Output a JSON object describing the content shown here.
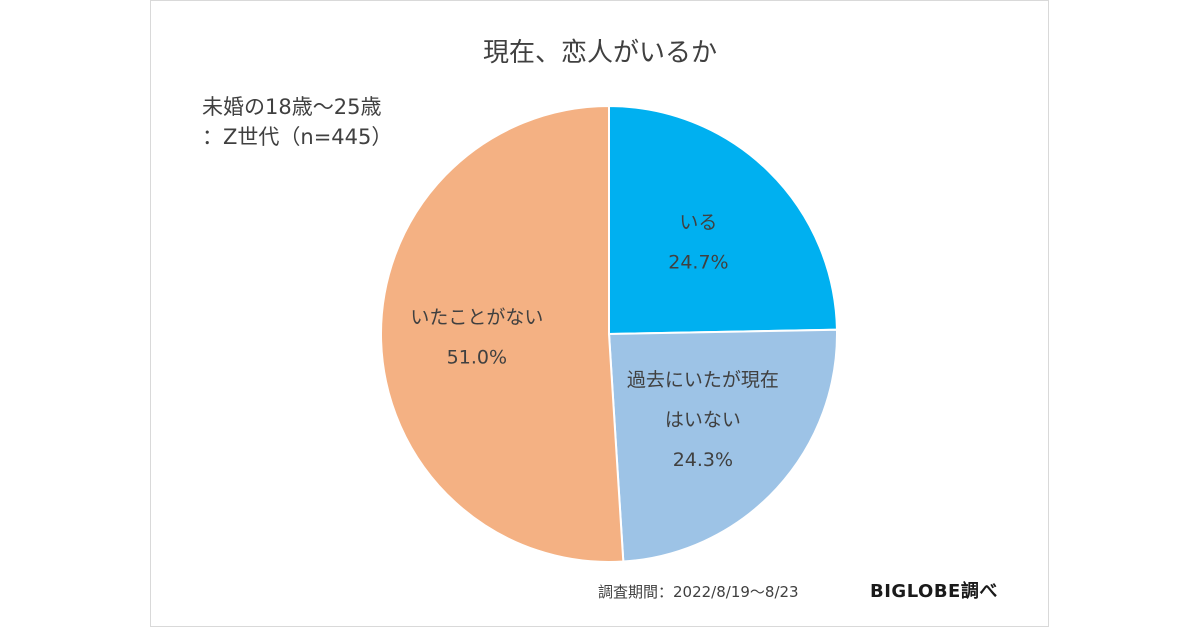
{
  "chart_data": {
    "type": "pie",
    "title": "現在、恋人がいるか",
    "subtitle": "未婚の18歳～25歳\n：Z世代（n=445）",
    "slices": [
      {
        "label": "いる",
        "value": 24.7,
        "value_label": "24.7%",
        "color": "#00b0f0"
      },
      {
        "label": "過去にいたが現在\nはいない",
        "value": 24.3,
        "value_label": "24.3%",
        "color": "#9dc3e6"
      },
      {
        "label": "いたことがない",
        "value": 51.0,
        "value_label": "51.0%",
        "color": "#f4b183"
      }
    ],
    "start_angle": "12 o'clock",
    "direction": "clockwise"
  },
  "footer": {
    "period": "調査期間：2022/8/19～8/23",
    "source": "BIGLOBE調べ"
  }
}
